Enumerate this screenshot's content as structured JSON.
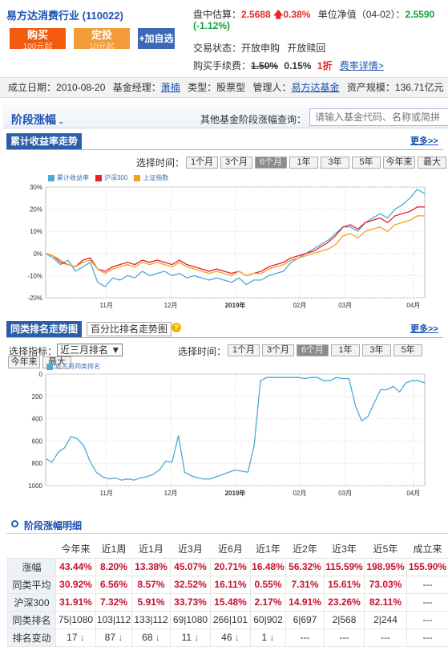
{
  "header": {
    "fund_name": "易方达消费行业",
    "fund_code": "(110022)",
    "buy_label": "购买",
    "buy_sub": "100元起",
    "dingtou_label": "定投",
    "dingtou_sub": "10元起",
    "add_fav_label": "+加自选",
    "estimate_label": "盘中估算：",
    "estimate_value": "2.5688",
    "estimate_change": "0.38%",
    "nav_label": "单位净值（04-02）：",
    "nav_value": "2.5590",
    "nav_change": "(-1.12%)",
    "trade_status_label": "交易状态：",
    "trade_status_buy": "开放申购",
    "trade_status_redeem": "开放赎回",
    "fee_label": "购买手续费：",
    "fee_original": "1.50%",
    "fee_current": "0.15%",
    "fee_discount": "1折",
    "fee_detail_link": "费率详情>"
  },
  "info_bar": {
    "established_label": "成立日期：",
    "established_value": "2010-08-20",
    "manager_label": "基金经理：",
    "manager_value": "萧楠",
    "type_label": "类型：",
    "type_value": "股票型",
    "company_label": "管理人：",
    "company_value": "易方达基金",
    "size_label": "资产规模：",
    "size_value": "136.71亿元"
  },
  "section": {
    "title": "阶段涨幅",
    "query_label": "其他基金阶段涨幅查询：",
    "query_placeholder": "请输入基金代码、名称或简拼"
  },
  "chart1_panel": {
    "tab": "累计收益率走势",
    "more": "更多>>",
    "select_time_label": "选择时间：",
    "periods": [
      "1个月",
      "3个月",
      "6个月",
      "1年",
      "3年",
      "5年",
      "今年来",
      "最大"
    ],
    "active_period": "6个月"
  },
  "chart2_panel": {
    "tab_active": "同类排名走势图",
    "tab_inactive": "百分比排名走势图",
    "help_icon": "?",
    "more": "更多>>",
    "indicator_label": "选择指标：",
    "indicator_value": "近三月排名 ▼",
    "select_time_label": "选择时间：",
    "periods": [
      "1个月",
      "3个月",
      "6个月",
      "1年",
      "3年",
      "5年"
    ],
    "periods_row2": [
      "今年来",
      "最大"
    ],
    "active_period": "6个月"
  },
  "colors": {
    "fund": "#4ea8d8",
    "hs300": "#e8202a",
    "sh_index": "#f4a020",
    "rank": "#4ea8d8"
  },
  "chart_data": [
    {
      "type": "line",
      "title": "",
      "legend_placement": "top-left",
      "grid": true,
      "ylim": [
        -20,
        30
      ],
      "y_ticks": [
        "30%",
        "20%",
        "10%",
        "0%",
        "-10%",
        "-20%"
      ],
      "x_ticks": [
        "11月",
        "12月",
        "2019年",
        "02月",
        "03月",
        "04月"
      ],
      "series": [
        {
          "name": "累计收益率",
          "color": "#4ea8d8",
          "values": [
            0,
            -2,
            -5,
            -3,
            -8,
            -6,
            -4,
            -13,
            -15,
            -11,
            -12,
            -10,
            -11,
            -8,
            -10,
            -9,
            -8,
            -10,
            -9,
            -11,
            -10,
            -11,
            -12,
            -11,
            -12,
            -13,
            -11,
            -14,
            -12,
            -12,
            -10,
            -9,
            -8,
            -4,
            -2,
            0,
            2,
            4,
            6,
            9,
            12,
            12,
            10,
            14,
            16,
            18,
            16,
            20,
            22,
            25,
            29,
            27
          ]
        },
        {
          "name": "沪深300",
          "color": "#e8202a",
          "values": [
            0,
            -1,
            -4,
            -5,
            -6,
            -3,
            -2,
            -7,
            -8,
            -6,
            -5,
            -4,
            -5,
            -3,
            -4,
            -3,
            -4,
            -5,
            -3,
            -5,
            -6,
            -7,
            -8,
            -7,
            -8,
            -9,
            -8,
            -10,
            -9,
            -8,
            -6,
            -5,
            -4,
            -2,
            -1,
            0,
            1,
            3,
            5,
            8,
            12,
            13,
            11,
            14,
            15,
            16,
            14,
            17,
            18,
            19,
            21,
            21
          ]
        },
        {
          "name": "上证指数",
          "color": "#f4a020",
          "values": [
            0,
            -1,
            -3,
            -5,
            -6,
            -4,
            -3,
            -7,
            -9,
            -7,
            -6,
            -5,
            -6,
            -4,
            -5,
            -4,
            -5,
            -6,
            -4,
            -6,
            -7,
            -8,
            -9,
            -8,
            -9,
            -10,
            -8,
            -10,
            -9,
            -9,
            -7,
            -6,
            -5,
            -3,
            -2,
            -1,
            0,
            1,
            2,
            4,
            8,
            9,
            7,
            10,
            11,
            12,
            10,
            13,
            14,
            15,
            17,
            17
          ]
        }
      ]
    },
    {
      "type": "line",
      "title": "",
      "legend_placement": "top-left",
      "grid": true,
      "ylim": [
        1000,
        0
      ],
      "y_ticks": [
        "0",
        "200",
        "400",
        "600",
        "800",
        "1000"
      ],
      "x_ticks": [
        "11月",
        "12月",
        "2019年",
        "02月",
        "03月",
        "04月"
      ],
      "series": [
        {
          "name": "近三月同类排名",
          "color": "#4ea8d8",
          "values": [
            760,
            790,
            700,
            660,
            560,
            580,
            640,
            780,
            880,
            920,
            940,
            930,
            950,
            940,
            950,
            930,
            920,
            900,
            860,
            780,
            790,
            550,
            880,
            910,
            930,
            940,
            940,
            920,
            900,
            880,
            860,
            870,
            880,
            640,
            60,
            30,
            30,
            30,
            30,
            30,
            30,
            40,
            30,
            30,
            60,
            60,
            30,
            40,
            40,
            280,
            420,
            380,
            260,
            140,
            140,
            110,
            160,
            80,
            60,
            60,
            80
          ]
        }
      ]
    }
  ],
  "detail": {
    "title": "阶段涨幅明细",
    "columns": [
      "",
      "今年来",
      "近1周",
      "近1月",
      "近3月",
      "近6月",
      "近1年",
      "近2年",
      "近3年",
      "近5年",
      "成立来"
    ],
    "rows": [
      {
        "label": "涨幅",
        "values": [
          "43.44%",
          "8.20%",
          "13.38%",
          "45.07%",
          "20.71%",
          "16.48%",
          "56.32%",
          "115.59%",
          "198.95%",
          "155.90%"
        ],
        "style": "red"
      },
      {
        "label": "同类平均",
        "values": [
          "30.92%",
          "6.56%",
          "8.57%",
          "32.52%",
          "16.11%",
          "0.55%",
          "7.31%",
          "15.61%",
          "73.03%",
          "---"
        ],
        "style": "red"
      },
      {
        "label": "沪深300",
        "values": [
          "31.91%",
          "7.32%",
          "5.91%",
          "33.73%",
          "15.48%",
          "2.17%",
          "14.91%",
          "23.26%",
          "82.11%",
          "---"
        ],
        "style": "red"
      },
      {
        "label": "同类排名",
        "values": [
          "75|1080",
          "103|112",
          "133|112",
          "69|1080",
          "266|101",
          "60|902",
          "6|697",
          "2|568",
          "2|244",
          "---"
        ],
        "style": "plain"
      },
      {
        "label": "排名变动",
        "values": [
          "17",
          "87",
          "68",
          "11",
          "46",
          "1",
          "---",
          "---",
          "---",
          "---"
        ],
        "arrows": [
          true,
          true,
          true,
          true,
          true,
          true,
          false,
          false,
          false,
          false
        ],
        "style": "plain"
      }
    ]
  }
}
